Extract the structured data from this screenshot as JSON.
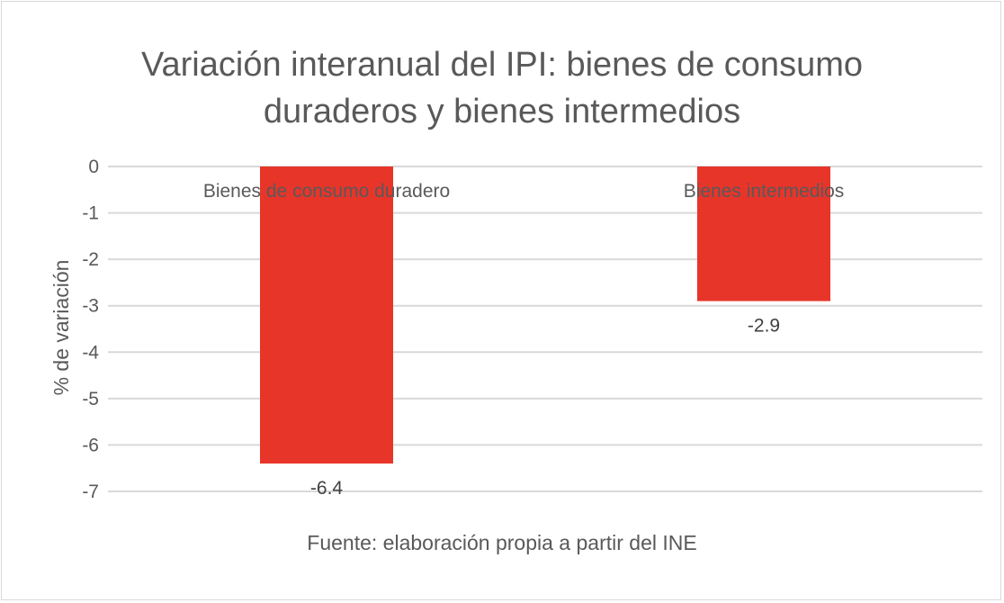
{
  "chart_data": {
    "type": "bar",
    "title": "Variación interanual del IPI: bienes de consumo duraderos y bienes intermedios",
    "title_lines": [
      "Variación interanual del IPI: bienes de consumo",
      "duraderos y bienes intermedios"
    ],
    "categories": [
      "Bienes de consumo duradero",
      "Bienes intermedios"
    ],
    "values": [
      -6.4,
      -2.9
    ],
    "data_labels": [
      "-6.4",
      "-2.9"
    ],
    "xlabel": "",
    "ylabel": "% de variación",
    "ylim": [
      -7,
      0
    ],
    "yticks": [
      0,
      -1,
      -2,
      -3,
      -4,
      -5,
      -6,
      -7
    ],
    "grid": true,
    "legend": "none",
    "bar_color": "#e8352a",
    "gridline_color": "#d9d9d9"
  },
  "source_note": "Fuente: elaboración propia a partir del INE"
}
